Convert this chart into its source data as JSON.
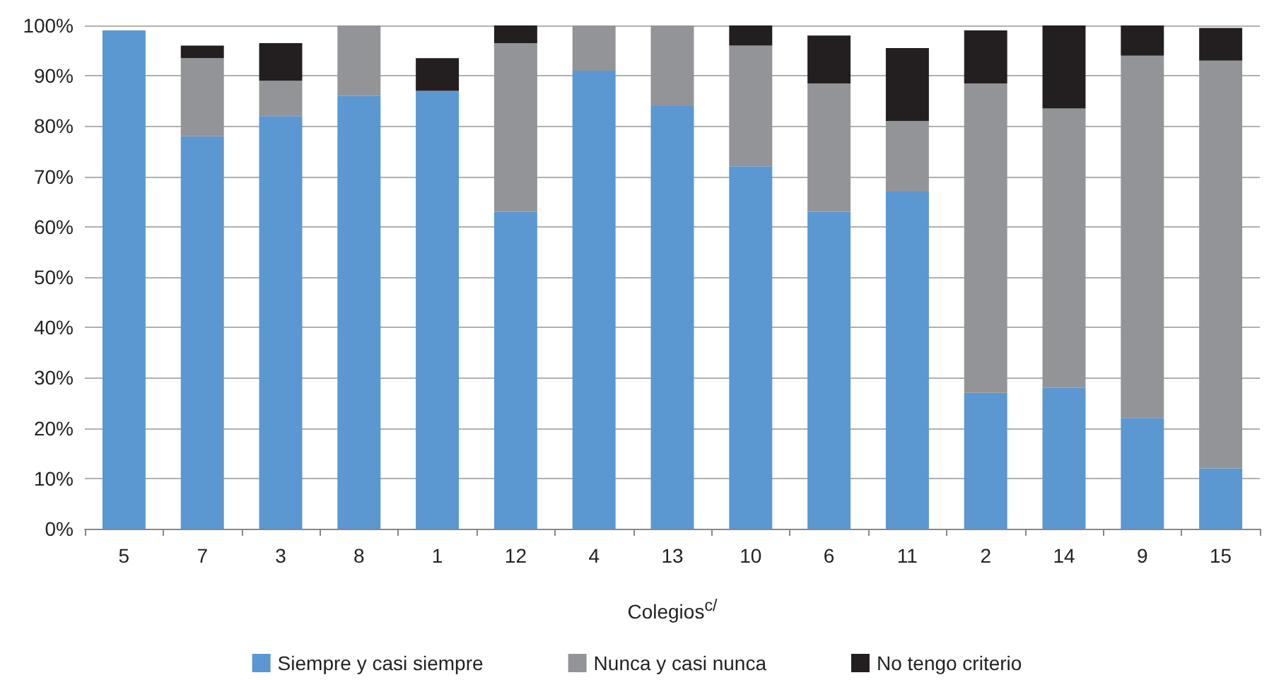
{
  "chart_data": {
    "type": "bar",
    "stacked": true,
    "xlabel": "Colegios$^{c/}$",
    "categories": [
      "5",
      "7",
      "3",
      "8",
      "1",
      "12",
      "4",
      "13",
      "10",
      "6",
      "11",
      "2",
      "14",
      "9",
      "15"
    ],
    "series": [
      {
        "name": "Siempre y casi siempre",
        "color": "#5b97d1",
        "values": [
          99,
          78,
          82,
          86,
          87,
          63,
          91,
          84,
          72,
          63,
          67,
          27,
          28,
          22,
          12
        ]
      },
      {
        "name": "Nunca y casi nunca",
        "color": "#939497",
        "values": [
          0,
          15.5,
          7,
          14,
          0,
          33.5,
          9,
          16,
          24,
          25.5,
          14,
          61.5,
          55.5,
          72,
          81
        ]
      },
      {
        "name": "No tengo criterio",
        "color": "#231f20",
        "values": [
          0,
          2.5,
          7.5,
          0,
          6.5,
          3.5,
          0,
          0,
          4,
          9.5,
          14.5,
          10.5,
          16.5,
          6,
          6.5
        ]
      }
    ],
    "ylim": [
      0,
      100
    ],
    "yticks": [
      {
        "value": 0,
        "label": "0%"
      },
      {
        "value": 10,
        "label": "10%"
      },
      {
        "value": 20,
        "label": "20%"
      },
      {
        "value": 30,
        "label": "30%"
      },
      {
        "value": 40,
        "label": "40%"
      },
      {
        "value": 50,
        "label": "50%"
      },
      {
        "value": 60,
        "label": "60%"
      },
      {
        "value": 70,
        "label": "70%"
      },
      {
        "value": 80,
        "label": "80%"
      },
      {
        "value": 90,
        "label": "90%"
      },
      {
        "value": 100,
        "label": "100%"
      }
    ],
    "grid": "y",
    "legend": "bottom"
  }
}
